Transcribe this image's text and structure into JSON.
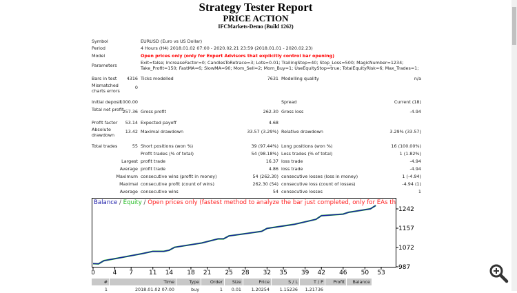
{
  "header": {
    "title": "Strategy Tester Report",
    "subtitle": "PRICE ACTION",
    "server": "IFCMarkets-Demo (Build 1262)"
  },
  "info": [
    {
      "label": "Symbol",
      "value": "EURUSD (Euro vs US Dollar)"
    },
    {
      "label": "Period",
      "value": "4 Hours (H4) 2018.01.02 07:00 - 2020.02.21 23:59 (2018.01.01 - 2020.02.23)"
    },
    {
      "label": "Model",
      "value": "Open prices only (only for Expert Advisors that explicitly control bar opening)"
    },
    {
      "label": "Parameters",
      "value": "Exit=false; IncreaseFactor=0; CandlesToRetrace=3; Lots=0.01; TrailingStop=40; Stop_Loss=500; MagicNumber=1234; Take_Profit=150; FastMA=6; SlowMA=90; Mom_Sell=2; Mom_Buy=1; UseEquityStop=true; TotalEquityRisk=6; Max_Trades=1;"
    }
  ],
  "stats": [
    [
      "Bars in test",
      "4316",
      "Ticks modelled",
      "7631",
      "Modelling quality",
      "n/a"
    ],
    [
      "Mismatched charts errors",
      "0",
      "",
      "",
      "",
      ""
    ],
    [
      "Initial deposit",
      "1000.00",
      "",
      "",
      "Spread",
      "Current (18)"
    ],
    [
      "Total net profit",
      "257.36",
      "Gross profit",
      "262.30",
      "Gross loss",
      "-4.94"
    ],
    [
      "Profit factor",
      "53.14",
      "Expected payoff",
      "4.68",
      "",
      ""
    ],
    [
      "Absolute drawdown",
      "13.42",
      "Maximal drawdown",
      "33.57 (3.29%)",
      "Relative drawdown",
      "3.29% (33.57)"
    ],
    [
      "Total trades",
      "55",
      "Short positions (won %)",
      "39 (97.44%)",
      "Long positions (won %)",
      "16 (100.00%)"
    ],
    [
      "",
      "",
      "Profit trades (% of total)",
      "54 (98.18%)",
      "Loss trades (% of total)",
      "1 (1.82%)"
    ],
    [
      "",
      "Largest",
      "profit trade",
      "16.37",
      "loss trade",
      "-4.94"
    ],
    [
      "",
      "Average",
      "profit trade",
      "4.86",
      "loss trade",
      "-4.94"
    ],
    [
      "",
      "Maximum",
      "consecutive wins (profit in money)",
      "54 (262.30)",
      "consecutive losses (loss in money)",
      "1 (-4.94)"
    ],
    [
      "",
      "Maximal",
      "consecutive profit (count of wins)",
      "262.30 (54)",
      "consecutive loss (count of losses)",
      "-4.94 (1)"
    ],
    [
      "",
      "Average",
      "consecutive wins",
      "54",
      "consecutive losses",
      "1"
    ]
  ],
  "chart_data": {
    "type": "line",
    "legend": [
      "Balance",
      "Equity",
      "Open prices only (fastest method to analyze the bar just completed, only for EAs that explicitly control b"
    ],
    "colors": {
      "balance": "#1a1aa8",
      "equity": "#22bb22",
      "model": "#ff2020"
    },
    "xticks": [
      0,
      4,
      7,
      11,
      14,
      18,
      21,
      25,
      28,
      32,
      35,
      39,
      42,
      46,
      50,
      53
    ],
    "yticks": [
      987,
      1072,
      1157,
      1242
    ],
    "xlim": [
      0,
      56
    ],
    "ylim": [
      987,
      1270
    ],
    "series": [
      {
        "name": "Balance",
        "x": [
          0,
          1,
          2,
          5,
          9,
          11,
          13,
          14,
          15,
          20,
          23,
          24,
          25,
          28,
          31,
          32,
          37,
          41,
          42,
          46,
          47,
          51,
          52
        ],
        "y": [
          1001,
          1000,
          1014,
          1027,
          1045,
          1055,
          1055,
          1060,
          1073,
          1092,
          1110,
          1110,
          1123,
          1133,
          1143,
          1156,
          1174,
          1196,
          1212,
          1219,
          1227,
          1242,
          1257
        ]
      }
    ]
  },
  "trades": {
    "headers": [
      "#",
      "Time",
      "Type",
      "Order",
      "Size",
      "Price",
      "S / L",
      "T / P",
      "Profit",
      "Balance"
    ],
    "rows": [
      [
        "1",
        "2018.01.02 07:00",
        "buy",
        "1",
        "0.01",
        "1.20254",
        "1.15236",
        "1.21736",
        "",
        ""
      ]
    ]
  }
}
